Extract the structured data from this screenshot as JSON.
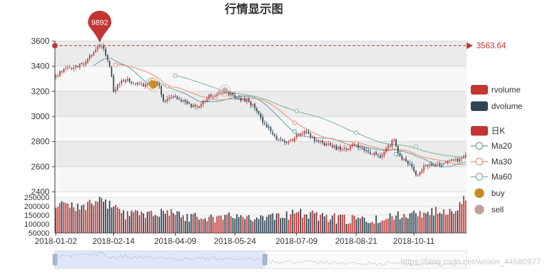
{
  "chart_data": {
    "type": "candlestick",
    "title": "行情显示图",
    "xlabel": "",
    "ylabel": "",
    "price_axis": {
      "ylim": [
        2400,
        3600
      ],
      "ticks": [
        "3600",
        "3400",
        "3200",
        "3000",
        "2800",
        "2600",
        "2400"
      ],
      "grid": true
    },
    "volume_axis": {
      "ylim": [
        50000,
        250000
      ],
      "ticks": [
        "250000",
        "200000",
        "150000",
        "100000",
        "50000"
      ]
    },
    "x_axis": {
      "ticks": [
        "2018-01-02",
        "2018-02-14",
        "2018-04-09",
        "2018-05-24",
        "2018-07-09",
        "2018-08-21",
        "2018-10-11"
      ],
      "tick_index": [
        0,
        29,
        60,
        90,
        121,
        151,
        180
      ]
    },
    "series_names": {
      "rvolume": "rvolume",
      "dvolume": "dvolume",
      "kline": "日K",
      "ma20": "Ma20",
      "ma30": "Ma30",
      "ma60": "Ma60",
      "buy": "buy",
      "sell": "sell"
    },
    "colors": {
      "up": "#c23531",
      "down": "#2f4554",
      "ma20": "#61a0a8",
      "ma30": "#e98f6f",
      "ma60": "#7fb393",
      "buy": "#c98b26",
      "sell": "#bda29a",
      "markline": "#c23531"
    },
    "max_marker_label": "3589.92",
    "max_marker_shown": "9892",
    "markline_label": "3563.64",
    "markline_value": 3563.64,
    "anchors": [
      {
        "i": 0,
        "v": 3320
      },
      {
        "i": 2,
        "v": 3355
      },
      {
        "i": 6,
        "v": 3380
      },
      {
        "i": 10,
        "v": 3405
      },
      {
        "i": 15,
        "v": 3425
      },
      {
        "i": 19,
        "v": 3520
      },
      {
        "i": 22,
        "v": 3575
      },
      {
        "i": 25,
        "v": 3500
      },
      {
        "i": 27,
        "v": 3400
      },
      {
        "i": 28,
        "v": 3310
      },
      {
        "i": 29,
        "v": 3190
      },
      {
        "i": 31,
        "v": 3250
      },
      {
        "i": 34,
        "v": 3290
      },
      {
        "i": 38,
        "v": 3275
      },
      {
        "i": 43,
        "v": 3250
      },
      {
        "i": 47,
        "v": 3265
      },
      {
        "i": 52,
        "v": 3250
      },
      {
        "i": 54,
        "v": 3120
      },
      {
        "i": 58,
        "v": 3150
      },
      {
        "i": 62,
        "v": 3150
      },
      {
        "i": 66,
        "v": 3090
      },
      {
        "i": 72,
        "v": 3080
      },
      {
        "i": 76,
        "v": 3155
      },
      {
        "i": 82,
        "v": 3175
      },
      {
        "i": 86,
        "v": 3190
      },
      {
        "i": 90,
        "v": 3155
      },
      {
        "i": 95,
        "v": 3130
      },
      {
        "i": 100,
        "v": 3080
      },
      {
        "i": 104,
        "v": 2960
      },
      {
        "i": 108,
        "v": 2880
      },
      {
        "i": 112,
        "v": 2810
      },
      {
        "i": 116,
        "v": 2790
      },
      {
        "i": 120,
        "v": 2835
      },
      {
        "i": 123,
        "v": 2870
      },
      {
        "i": 126,
        "v": 2880
      },
      {
        "i": 130,
        "v": 2810
      },
      {
        "i": 135,
        "v": 2775
      },
      {
        "i": 140,
        "v": 2760
      },
      {
        "i": 144,
        "v": 2725
      },
      {
        "i": 150,
        "v": 2780
      },
      {
        "i": 155,
        "v": 2740
      },
      {
        "i": 160,
        "v": 2700
      },
      {
        "i": 164,
        "v": 2680
      },
      {
        "i": 168,
        "v": 2780
      },
      {
        "i": 170,
        "v": 2810
      },
      {
        "i": 172,
        "v": 2700
      },
      {
        "i": 176,
        "v": 2640
      },
      {
        "i": 180,
        "v": 2570
      },
      {
        "i": 182,
        "v": 2520
      },
      {
        "i": 185,
        "v": 2600
      },
      {
        "i": 190,
        "v": 2610
      },
      {
        "i": 195,
        "v": 2620
      },
      {
        "i": 199,
        "v": 2650
      },
      {
        "i": 203,
        "v": 2660
      },
      {
        "i": 206,
        "v": 2700
      }
    ],
    "n_days": 207,
    "volume_profile": [
      {
        "i": 0,
        "v": 205000
      },
      {
        "i": 8,
        "v": 200000
      },
      {
        "i": 15,
        "v": 195000
      },
      {
        "i": 22,
        "v": 225000
      },
      {
        "i": 28,
        "v": 205000
      },
      {
        "i": 35,
        "v": 150000
      },
      {
        "i": 45,
        "v": 160000
      },
      {
        "i": 55,
        "v": 170000
      },
      {
        "i": 65,
        "v": 140000
      },
      {
        "i": 80,
        "v": 135000
      },
      {
        "i": 95,
        "v": 140000
      },
      {
        "i": 105,
        "v": 140000
      },
      {
        "i": 115,
        "v": 135000
      },
      {
        "i": 120,
        "v": 175000
      },
      {
        "i": 130,
        "v": 140000
      },
      {
        "i": 140,
        "v": 130000
      },
      {
        "i": 150,
        "v": 120000
      },
      {
        "i": 160,
        "v": 115000
      },
      {
        "i": 170,
        "v": 140000
      },
      {
        "i": 180,
        "v": 160000
      },
      {
        "i": 190,
        "v": 165000
      },
      {
        "i": 200,
        "v": 185000
      },
      {
        "i": 206,
        "v": 240000
      }
    ],
    "buy_points": [
      {
        "i": 49,
        "v": 3255
      }
    ],
    "sell_points": [
      {
        "i": 48,
        "v": 3262
      },
      {
        "i": 85,
        "v": 3205
      }
    ],
    "ma_markers": [
      {
        "series": "ma20",
        "points": [
          {
            "i": 120,
            "v": 2880
          },
          {
            "i": 171,
            "v": 2700
          }
        ]
      },
      {
        "series": "ma30",
        "points": [
          {
            "i": 30,
            "v": 3410
          },
          {
            "i": 56,
            "v": 3240
          },
          {
            "i": 120,
            "v": 2950
          },
          {
            "i": 151,
            "v": 2790
          }
        ]
      },
      {
        "series": "ma60",
        "points": [
          {
            "i": 60,
            "v": 3325
          },
          {
            "i": 121,
            "v": 3045
          },
          {
            "i": 151,
            "v": 2870
          },
          {
            "i": 181,
            "v": 2760
          }
        ]
      }
    ],
    "datazoom": {
      "start_fraction": 0.0,
      "end_fraction": 0.51
    }
  },
  "watermark": "https://blog.csdn.net/weixin_44580977"
}
